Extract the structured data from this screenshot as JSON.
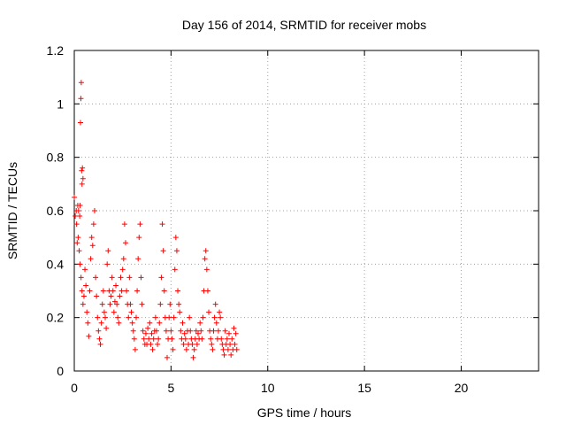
{
  "chart_data": {
    "type": "scatter",
    "title": "Day 156 of 2014, SRMTID for receiver mobs",
    "xlabel": "GPS time / hours",
    "ylabel": "SRMTID / TECUs",
    "xlim": [
      0,
      24
    ],
    "ylim": [
      0,
      1.2
    ],
    "xticks": [
      0,
      5,
      10,
      15,
      20
    ],
    "xtick_labels": [
      "0",
      "5",
      "10",
      "15",
      "20"
    ],
    "yticks": [
      0,
      0.2,
      0.4,
      0.6,
      0.8,
      1.0,
      1.2
    ],
    "ytick_labels": [
      "0",
      "0.2",
      "0.4",
      "0.6",
      "0.8",
      "1",
      "1.2"
    ],
    "grid": true,
    "legend": "none",
    "marker": "+",
    "series": [
      {
        "name": "SRMTID",
        "color": "#ff0000",
        "points": [
          [
            0.0,
            0.65
          ],
          [
            0.05,
            0.58
          ],
          [
            0.1,
            0.6
          ],
          [
            0.12,
            0.55
          ],
          [
            0.15,
            0.48
          ],
          [
            0.18,
            0.62
          ],
          [
            0.2,
            0.5
          ],
          [
            0.22,
            0.6
          ],
          [
            0.25,
            0.45
          ],
          [
            0.28,
            0.58
          ],
          [
            0.3,
            0.62
          ],
          [
            0.32,
            0.93
          ],
          [
            0.34,
            1.02
          ],
          [
            0.36,
            1.08
          ],
          [
            0.38,
            0.75
          ],
          [
            0.4,
            0.7
          ],
          [
            0.42,
            0.76
          ],
          [
            0.45,
            0.72
          ],
          [
            0.3,
            0.4
          ],
          [
            0.35,
            0.35
          ],
          [
            0.4,
            0.3
          ],
          [
            0.45,
            0.25
          ],
          [
            0.5,
            0.28
          ],
          [
            0.55,
            0.38
          ],
          [
            0.6,
            0.32
          ],
          [
            0.65,
            0.22
          ],
          [
            0.7,
            0.18
          ],
          [
            0.75,
            0.13
          ],
          [
            0.8,
            0.3
          ],
          [
            0.85,
            0.42
          ],
          [
            0.9,
            0.5
          ],
          [
            0.95,
            0.47
          ],
          [
            1.0,
            0.55
          ],
          [
            1.05,
            0.6
          ],
          [
            1.1,
            0.35
          ],
          [
            1.15,
            0.28
          ],
          [
            1.2,
            0.2
          ],
          [
            1.25,
            0.15
          ],
          [
            1.3,
            0.12
          ],
          [
            1.35,
            0.1
          ],
          [
            1.4,
            0.18
          ],
          [
            1.45,
            0.25
          ],
          [
            1.5,
            0.3
          ],
          [
            1.55,
            0.22
          ],
          [
            1.6,
            0.2
          ],
          [
            1.65,
            0.16
          ],
          [
            1.7,
            0.4
          ],
          [
            1.75,
            0.45
          ],
          [
            1.8,
            0.3
          ],
          [
            1.85,
            0.25
          ],
          [
            1.9,
            0.28
          ],
          [
            1.95,
            0.35
          ],
          [
            2.0,
            0.3
          ],
          [
            2.05,
            0.22
          ],
          [
            2.1,
            0.26
          ],
          [
            2.15,
            0.32
          ],
          [
            2.2,
            0.25
          ],
          [
            2.25,
            0.2
          ],
          [
            2.3,
            0.18
          ],
          [
            2.35,
            0.28
          ],
          [
            2.4,
            0.35
          ],
          [
            2.45,
            0.3
          ],
          [
            2.5,
            0.38
          ],
          [
            2.55,
            0.42
          ],
          [
            2.6,
            0.55
          ],
          [
            2.65,
            0.48
          ],
          [
            2.7,
            0.3
          ],
          [
            2.75,
            0.25
          ],
          [
            2.8,
            0.2
          ],
          [
            2.85,
            0.35
          ],
          [
            2.9,
            0.25
          ],
          [
            2.95,
            0.22
          ],
          [
            3.0,
            0.18
          ],
          [
            3.05,
            0.15
          ],
          [
            3.1,
            0.12
          ],
          [
            3.15,
            0.08
          ],
          [
            3.2,
            0.2
          ],
          [
            3.25,
            0.3
          ],
          [
            3.3,
            0.42
          ],
          [
            3.35,
            0.5
          ],
          [
            3.4,
            0.55
          ],
          [
            3.45,
            0.35
          ],
          [
            3.5,
            0.25
          ],
          [
            3.55,
            0.15
          ],
          [
            3.6,
            0.12
          ],
          [
            3.65,
            0.1
          ],
          [
            3.7,
            0.14
          ],
          [
            3.75,
            0.1
          ],
          [
            3.8,
            0.16
          ],
          [
            3.85,
            0.12
          ],
          [
            3.9,
            0.18
          ],
          [
            3.95,
            0.1
          ],
          [
            4.0,
            0.14
          ],
          [
            4.05,
            0.08
          ],
          [
            4.1,
            0.12
          ],
          [
            4.15,
            0.15
          ],
          [
            4.2,
            0.2
          ],
          [
            4.25,
            0.15
          ],
          [
            4.3,
            0.1
          ],
          [
            4.35,
            0.12
          ],
          [
            4.4,
            0.18
          ],
          [
            4.45,
            0.25
          ],
          [
            4.5,
            0.35
          ],
          [
            4.55,
            0.55
          ],
          [
            4.6,
            0.45
          ],
          [
            4.65,
            0.3
          ],
          [
            4.7,
            0.2
          ],
          [
            4.75,
            0.15
          ],
          [
            4.8,
            0.05
          ],
          [
            4.85,
            0.12
          ],
          [
            4.9,
            0.2
          ],
          [
            4.95,
            0.25
          ],
          [
            5.0,
            0.15
          ],
          [
            5.05,
            0.12
          ],
          [
            5.1,
            0.08
          ],
          [
            5.15,
            0.2
          ],
          [
            5.2,
            0.38
          ],
          [
            5.25,
            0.5
          ],
          [
            5.3,
            0.45
          ],
          [
            5.35,
            0.3
          ],
          [
            5.4,
            0.25
          ],
          [
            5.45,
            0.22
          ],
          [
            5.5,
            0.15
          ],
          [
            5.55,
            0.12
          ],
          [
            5.6,
            0.18
          ],
          [
            5.65,
            0.1
          ],
          [
            5.7,
            0.14
          ],
          [
            5.75,
            0.12
          ],
          [
            5.8,
            0.08
          ],
          [
            5.85,
            0.15
          ],
          [
            5.9,
            0.1
          ],
          [
            5.95,
            0.2
          ],
          [
            6.0,
            0.15
          ],
          [
            6.05,
            0.12
          ],
          [
            6.1,
            0.1
          ],
          [
            6.15,
            0.05
          ],
          [
            6.2,
            0.08
          ],
          [
            6.25,
            0.12
          ],
          [
            6.3,
            0.15
          ],
          [
            6.35,
            0.1
          ],
          [
            6.4,
            0.14
          ],
          [
            6.45,
            0.12
          ],
          [
            6.5,
            0.18
          ],
          [
            6.55,
            0.15
          ],
          [
            6.6,
            0.12
          ],
          [
            6.65,
            0.2
          ],
          [
            6.7,
            0.3
          ],
          [
            6.75,
            0.42
          ],
          [
            6.8,
            0.45
          ],
          [
            6.85,
            0.38
          ],
          [
            6.9,
            0.3
          ],
          [
            6.95,
            0.22
          ],
          [
            7.0,
            0.15
          ],
          [
            7.05,
            0.12
          ],
          [
            7.1,
            0.1
          ],
          [
            7.15,
            0.08
          ],
          [
            7.2,
            0.15
          ],
          [
            7.25,
            0.2
          ],
          [
            7.3,
            0.25
          ],
          [
            7.35,
            0.18
          ],
          [
            7.4,
            0.12
          ],
          [
            7.45,
            0.15
          ],
          [
            7.5,
            0.22
          ],
          [
            7.55,
            0.2
          ],
          [
            7.6,
            0.12
          ],
          [
            7.65,
            0.1
          ],
          [
            7.7,
            0.08
          ],
          [
            7.75,
            0.06
          ],
          [
            7.8,
            0.15
          ],
          [
            7.85,
            0.1
          ],
          [
            7.9,
            0.12
          ],
          [
            7.95,
            0.08
          ],
          [
            8.0,
            0.14
          ],
          [
            8.05,
            0.1
          ],
          [
            8.1,
            0.06
          ],
          [
            8.15,
            0.12
          ],
          [
            8.2,
            0.08
          ],
          [
            8.25,
            0.16
          ],
          [
            8.3,
            0.1
          ],
          [
            8.35,
            0.14
          ],
          [
            8.4,
            0.08
          ]
        ]
      }
    ]
  }
}
